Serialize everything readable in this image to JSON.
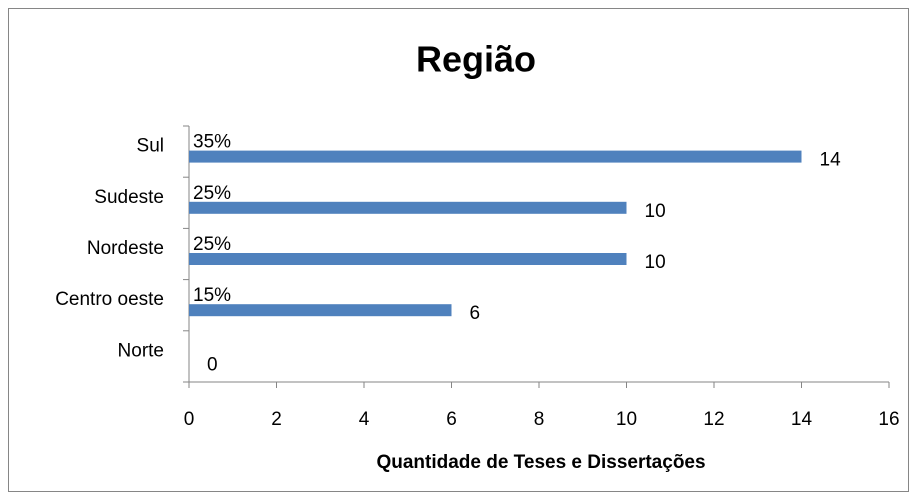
{
  "chart_data": {
    "type": "bar",
    "orientation": "horizontal",
    "title": "Região",
    "xlabel": "Quantidade de Teses e Dissertações",
    "categories": [
      "Sul",
      "Sudeste",
      "Nordeste",
      "Centro oeste",
      "Norte"
    ],
    "values": [
      14,
      10,
      10,
      6,
      0
    ],
    "percent_labels": [
      "35%",
      "25%",
      "25%",
      "15%",
      null
    ],
    "color": "#4f81bd",
    "xlim": [
      0,
      16
    ],
    "xticks": [
      0,
      2,
      4,
      6,
      8,
      10,
      12,
      14,
      16
    ],
    "grid": false
  }
}
